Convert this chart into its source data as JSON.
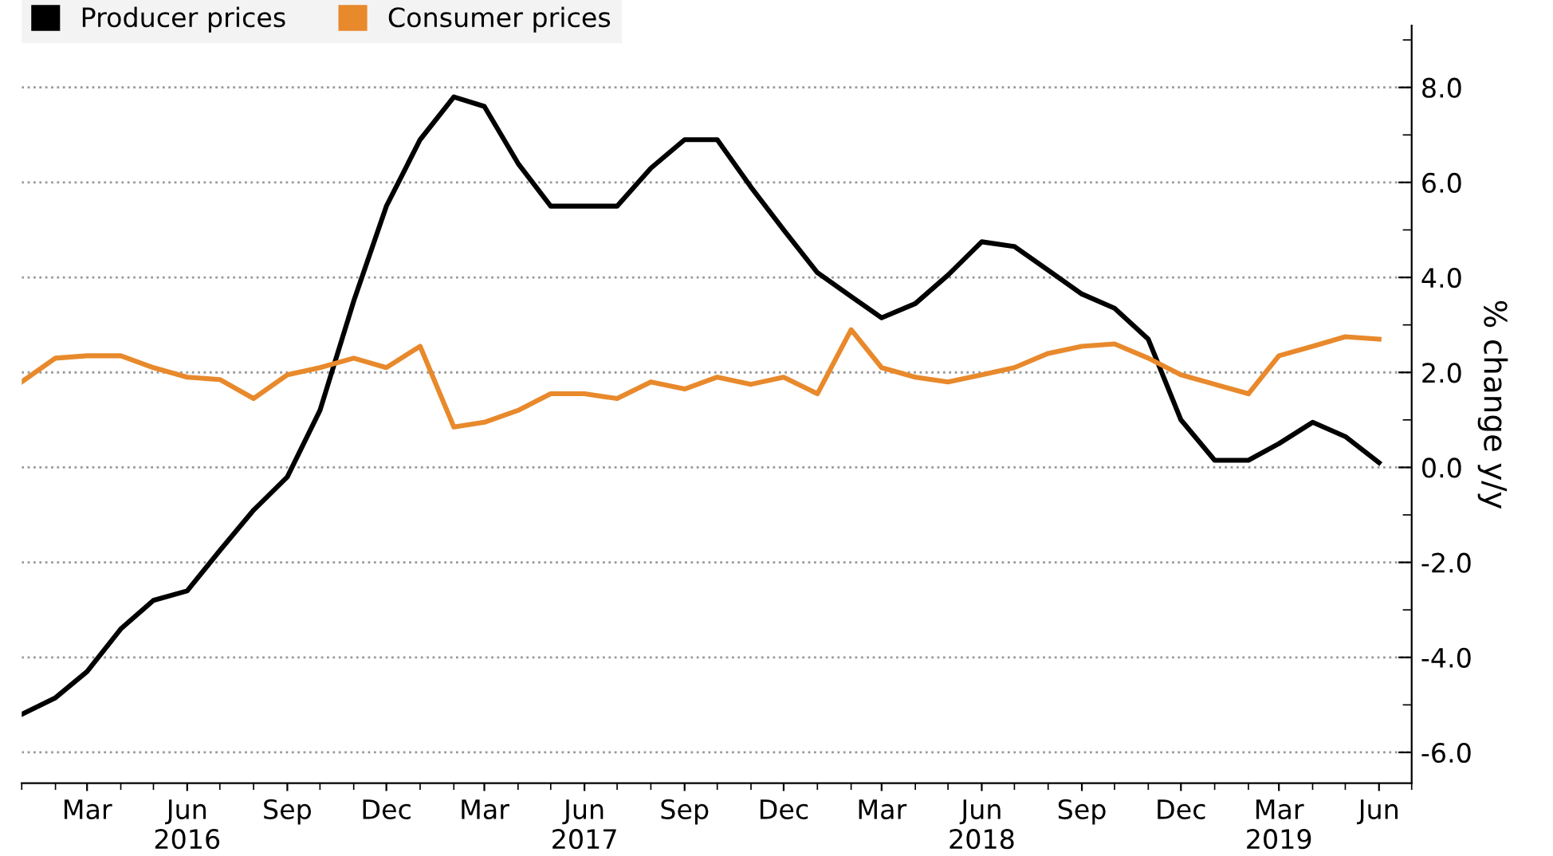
{
  "chart_data": {
    "type": "line",
    "ylabel": "% change y/y",
    "x": [
      "2016-01",
      "2016-02",
      "2016-03",
      "2016-04",
      "2016-05",
      "2016-06",
      "2016-07",
      "2016-08",
      "2016-09",
      "2016-10",
      "2016-11",
      "2016-12",
      "2017-01",
      "2017-02",
      "2017-03",
      "2017-04",
      "2017-05",
      "2017-06",
      "2017-07",
      "2017-08",
      "2017-09",
      "2017-10",
      "2017-11",
      "2017-12",
      "2018-01",
      "2018-02",
      "2018-03",
      "2018-04",
      "2018-05",
      "2018-06",
      "2018-07",
      "2018-08",
      "2018-09",
      "2018-10",
      "2018-11",
      "2018-12",
      "2019-01",
      "2019-02",
      "2019-03",
      "2019-04",
      "2019-05",
      "2019-06"
    ],
    "series": [
      {
        "name": "Producer prices",
        "color": "#000000",
        "values": [
          -5.2,
          -4.85,
          -4.3,
          -3.4,
          -2.8,
          -2.6,
          -1.75,
          -0.9,
          -0.2,
          1.2,
          3.5,
          5.5,
          6.9,
          7.8,
          7.6,
          6.4,
          5.5,
          5.5,
          5.5,
          6.3,
          6.9,
          6.9,
          5.9,
          5.0,
          4.1,
          3.6,
          3.15,
          3.45,
          4.05,
          4.75,
          4.65,
          4.15,
          3.65,
          3.35,
          2.7,
          1.0,
          0.15,
          0.15,
          0.5,
          0.95,
          0.65,
          0.1
        ]
      },
      {
        "name": "Consumer prices",
        "color": "#e8892c",
        "values": [
          1.8,
          2.3,
          2.35,
          2.35,
          2.1,
          1.9,
          1.85,
          1.45,
          1.95,
          2.1,
          2.3,
          2.1,
          2.55,
          0.85,
          0.95,
          1.2,
          1.55,
          1.55,
          1.45,
          1.8,
          1.65,
          1.9,
          1.75,
          1.9,
          1.55,
          2.9,
          2.1,
          1.9,
          1.8,
          1.95,
          2.1,
          2.4,
          2.55,
          2.6,
          2.3,
          1.95,
          1.75,
          1.55,
          2.35,
          2.55,
          2.75,
          2.7
        ]
      }
    ],
    "xlim": [
      "2016-01",
      "2019-07"
    ],
    "xticks": [
      {
        "value": "2016-03",
        "label": "Mar"
      },
      {
        "value": "2016-06",
        "label": "Jun\n2016"
      },
      {
        "value": "2016-09",
        "label": "Sep"
      },
      {
        "value": "2016-12",
        "label": "Dec"
      },
      {
        "value": "2017-03",
        "label": "Mar"
      },
      {
        "value": "2017-06",
        "label": "Jun\n2017"
      },
      {
        "value": "2017-09",
        "label": "Sep"
      },
      {
        "value": "2017-12",
        "label": "Dec"
      },
      {
        "value": "2018-03",
        "label": "Mar"
      },
      {
        "value": "2018-06",
        "label": "Jun\n2018"
      },
      {
        "value": "2018-09",
        "label": "Sep"
      },
      {
        "value": "2018-12",
        "label": "Dec"
      },
      {
        "value": "2019-03",
        "label": "Mar\n2019"
      },
      {
        "value": "2019-06",
        "label": "Jun"
      }
    ],
    "ylim": [
      -6.65,
      9.3
    ],
    "yticks": [
      {
        "value": -6,
        "label": "-6.0"
      },
      {
        "value": -5,
        "label": null
      },
      {
        "value": -4,
        "label": "-4.0"
      },
      {
        "value": -3,
        "label": null
      },
      {
        "value": -2,
        "label": "-2.0"
      },
      {
        "value": -1,
        "label": null
      },
      {
        "value": 0,
        "label": "0.0"
      },
      {
        "value": 1,
        "label": null
      },
      {
        "value": 2,
        "label": "2.0"
      },
      {
        "value": 3,
        "label": null
      },
      {
        "value": 4,
        "label": "4.0"
      },
      {
        "value": 5,
        "label": null
      },
      {
        "value": 6,
        "label": "6.0"
      },
      {
        "value": 7,
        "label": null
      },
      {
        "value": 8,
        "label": "8.0"
      },
      {
        "value": 9,
        "label": null
      }
    ],
    "grid": "y",
    "legend": "top left",
    "marker": "none",
    "line_style": "solid"
  }
}
